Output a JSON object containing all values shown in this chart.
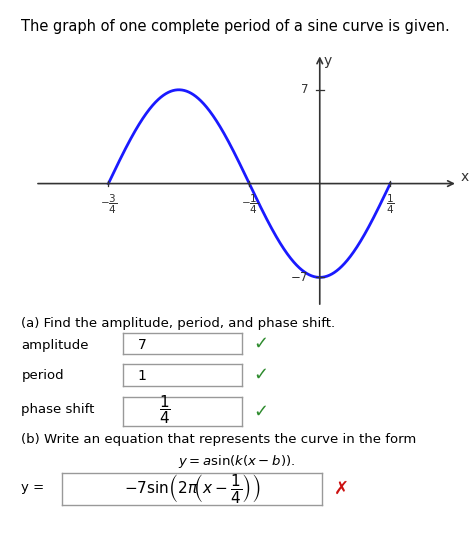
{
  "title": "The graph of one complete period of a sine curve is given.",
  "title_fontsize": 10.5,
  "amplitude": 7,
  "curve_color": "#1a1aff",
  "curve_linewidth": 2.0,
  "axis_color": "#333333",
  "xlim": [
    -1.0,
    0.48
  ],
  "ylim": [
    -9.5,
    10.5
  ],
  "x_tick_positions": [
    -0.75,
    -0.25,
    0.25
  ],
  "y_tick_7": 7,
  "y_tick_neg7": -7,
  "check_color": "#2e8b2e",
  "cross_color": "#cc1111",
  "box_edgecolor": "#999999",
  "background": "#ffffff",
  "text_a_header": "(a) Find the amplitude, period, and phase shift.",
  "text_amplitude_label": "amplitude",
  "text_amplitude_val": "7",
  "text_period_label": "period",
  "text_period_val": "1",
  "text_phase_label": "phase shift",
  "text_b_header": "(b) Write an equation that represents the curve in the form",
  "text_form": "y = a sin(k(x – b)).",
  "text_y_eq": "y = "
}
